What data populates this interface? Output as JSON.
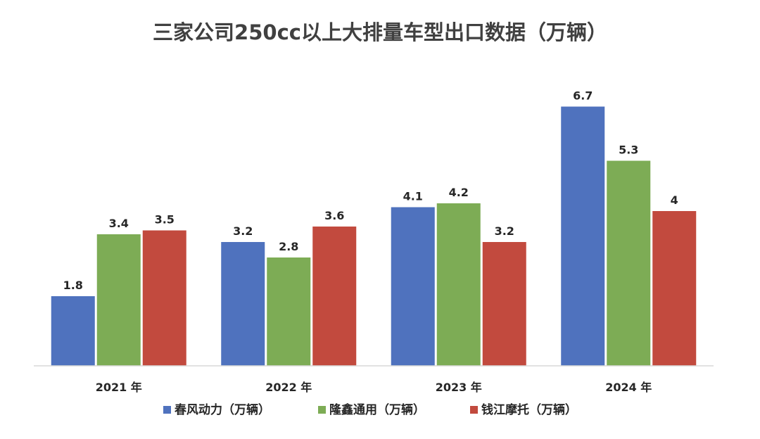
{
  "chart_data": {
    "type": "bar",
    "title": "三家公司250cc以上大排量车型出口数据（万辆）",
    "categories": [
      "2021 年",
      "2022 年",
      "2023 年",
      "2024 年"
    ],
    "series": [
      {
        "name": "春风动力（万辆）",
        "color": "#4F72BE",
        "values": [
          1.8,
          3.2,
          4.1,
          6.7
        ],
        "labels": [
          "1.8",
          "3.2",
          "4.1",
          "6.7"
        ]
      },
      {
        "name": "隆鑫通用（万辆）",
        "color": "#7DAC55",
        "values": [
          3.4,
          2.8,
          4.2,
          5.3
        ],
        "labels": [
          "3.4",
          "2.8",
          "4.2",
          "5.3"
        ]
      },
      {
        "name": "钱江摩托（万辆）",
        "color": "#C24A3E",
        "values": [
          3.5,
          3.6,
          3.2,
          4.0
        ],
        "labels": [
          "3.5",
          "3.6",
          "3.2",
          "4"
        ]
      }
    ],
    "xlabel": "",
    "ylabel": "",
    "ylim": [
      0,
      7
    ],
    "grid": false,
    "legend": "bottom",
    "axis_color": "#D9D9D9"
  }
}
